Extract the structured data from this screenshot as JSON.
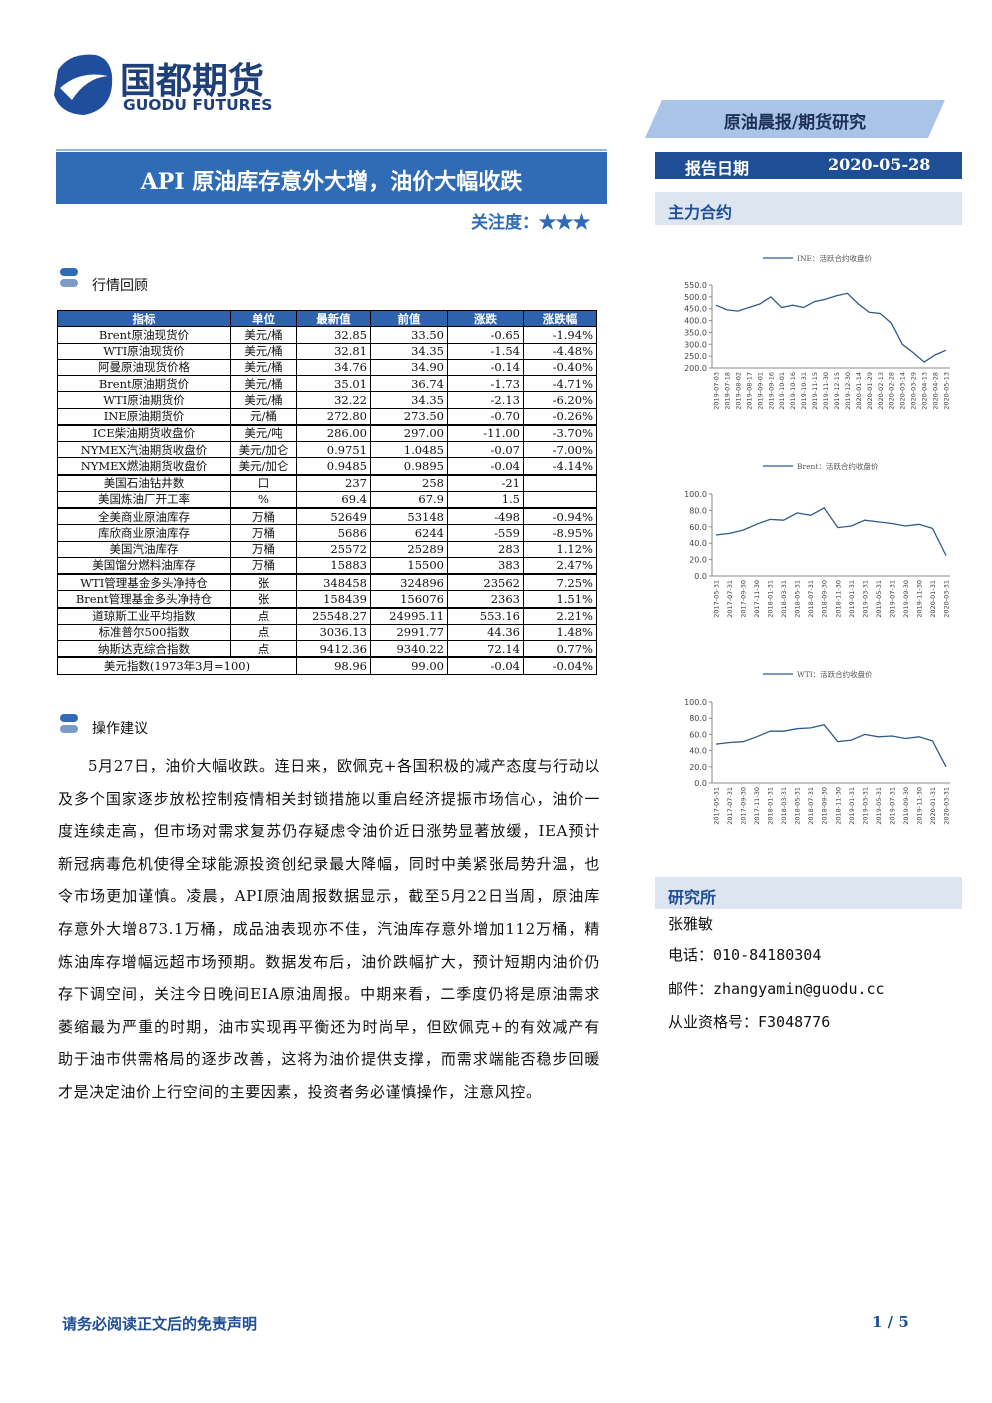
{
  "header": {
    "logo_cn": "国都期货",
    "logo_en": "GUODU FUTURES",
    "banner": "原油晨报/期货研究",
    "report_date_label": "报告日期",
    "report_date": "2020-05-28",
    "title": "API 原油库存意外大增，油价大幅收跌",
    "attention": "关注度：★★★"
  },
  "sections": {
    "review": "行情回顾",
    "advice": "操作建议"
  },
  "table": {
    "columns": [
      "指标",
      "单位",
      "最新值",
      "前值",
      "涨跌",
      "涨跌幅"
    ],
    "rows": [
      [
        "Brent原油现货价",
        "美元/桶",
        "32.85",
        "33.50",
        "-0.65",
        "-1.94%"
      ],
      [
        "WTI原油现货价",
        "美元/桶",
        "32.81",
        "34.35",
        "-1.54",
        "-4.48%"
      ],
      [
        "阿曼原油现货价格",
        "美元/桶",
        "34.76",
        "34.90",
        "-0.14",
        "-0.40%"
      ],
      [
        "Brent原油期货价",
        "美元/桶",
        "35.01",
        "36.74",
        "-1.73",
        "-4.71%"
      ],
      [
        "WTI原油期货价",
        "美元/桶",
        "32.22",
        "34.35",
        "-2.13",
        "-6.20%"
      ],
      [
        "INE原油期货价",
        "元/桶",
        "272.80",
        "273.50",
        "-0.70",
        "-0.26%"
      ],
      [
        "ICE柴油期货收盘价",
        "美元/吨",
        "286.00",
        "297.00",
        "-11.00",
        "-3.70%"
      ],
      [
        "NYMEX汽油期货收盘价",
        "美元/加仑",
        "0.9751",
        "1.0485",
        "-0.07",
        "-7.00%"
      ],
      [
        "NYMEX燃油期货收盘价",
        "美元/加仑",
        "0.9485",
        "0.9895",
        "-0.04",
        "-4.14%"
      ],
      [
        "美国石油钻井数",
        "口",
        "237",
        "258",
        "-21",
        null
      ],
      [
        "美国炼油厂开工率",
        "%",
        "69.4",
        "67.9",
        "1.5",
        null
      ],
      [
        "全美商业原油库存",
        "万桶",
        "52649",
        "53148",
        "-498",
        "-0.94%"
      ],
      [
        "库欣商业原油库存",
        "万桶",
        "5686",
        "6244",
        "-559",
        "-8.95%"
      ],
      [
        "美国汽油库存",
        "万桶",
        "25572",
        "25289",
        "283",
        "1.12%"
      ],
      [
        "美国馏分燃料油库存",
        "万桶",
        "15883",
        "15500",
        "383",
        "2.47%"
      ],
      [
        "WTI管理基金多头净持仓",
        "张",
        "348458",
        "324896",
        "23562",
        "7.25%"
      ],
      [
        "Brent管理基金多头净持仓",
        "张",
        "158439",
        "156076",
        "2363",
        "1.51%"
      ],
      [
        "道琼斯工业平均指数",
        "点",
        "25548.27",
        "24995.11",
        "553.16",
        "2.21%"
      ],
      [
        "标准普尔500指数",
        "点",
        "3036.13",
        "2991.77",
        "44.36",
        "1.48%"
      ],
      [
        "纳斯达克综合指数",
        "点",
        "9412.36",
        "9340.22",
        "72.14",
        "0.77%"
      ],
      [
        "美元指数(1973年3月=100)",
        null,
        "98.96",
        "99.00",
        "-0.04",
        "-0.04%"
      ]
    ]
  },
  "advice": "5月27日，油价大幅收跌。连日来，欧佩克+各国积极的减产态度与行动以及多个国家逐步放松控制疫情相关封锁措施以重启经济提振市场信心，油价一度连续走高，但市场对需求复苏仍存疑虑令油价近日涨势显著放缓，IEA预计新冠病毒危机使得全球能源投资创纪录最大降幅，同时中美紧张局势升温，也令市场更加谨慎。凌晨，API原油周报数据显示，截至5月22日当周，原油库存意外大增873.1万桶，成品油表现亦不佳，汽油库存意外增加112万桶，精炼油库存增幅远超市场预期。数据发布后，油价跌幅扩大，预计短期内油价仍存下调空间，关注今日晚间EIA原油周报。中期来看，二季度仍将是原油需求萎缩最为严重的时期，油市实现再平衡还为时尚早，但欧佩克+的有效减产有助于油市供需格局的逐步改善，这将为油价提供支撑，而需求端能否稳步回暖才是决定油价上行空间的主要因素，投资者务必谨慎操作，注意风控。",
  "sidebar": {
    "contracts_title": "主力合约",
    "research_title": "研究所",
    "analyst": "张雅敏",
    "phone": "电话：010-84180304",
    "email": "邮件：zhangyamin@guodu.cc",
    "license": "从业资格号：F3048776"
  },
  "chart_data": [
    {
      "type": "line",
      "categories": [
        "2019-07-03",
        "2019-07-18",
        "2019-08-02",
        "2019-08-17",
        "2019-09-01",
        "2019-09-16",
        "2019-10-01",
        "2019-10-16",
        "2019-10-31",
        "2019-11-15",
        "2019-11-30",
        "2019-12-15",
        "2019-12-30",
        "2020-01-14",
        "2020-01-29",
        "2020-02-13",
        "2020-02-28",
        "2020-03-14",
        "2020-03-29",
        "2020-04-13",
        "2020-04-28",
        "2020-05-13"
      ],
      "series": [
        {
          "name": "INE：活跃合约收盘价",
          "color": "#2f5a8c",
          "values": [
            465,
            445,
            440,
            455,
            470,
            500,
            455,
            465,
            455,
            480,
            490,
            505,
            515,
            470,
            435,
            430,
            390,
            300,
            265,
            225,
            255,
            275
          ]
        }
      ],
      "ylim": [
        200,
        550
      ],
      "yticks": [
        {
          "value": 200,
          "label": "200.0"
        },
        {
          "value": 250,
          "label": "250.0"
        },
        {
          "value": 300,
          "label": "300.0"
        },
        {
          "value": 350,
          "label": "350.0"
        },
        {
          "value": 400,
          "label": "400.0"
        },
        {
          "value": 450,
          "label": "450.0"
        },
        {
          "value": 500,
          "label": "500.0"
        },
        {
          "value": 550,
          "label": "550.0"
        }
      ]
    },
    {
      "type": "line",
      "categories": [
        "2017-05-31",
        "2017-07-31",
        "2017-09-30",
        "2017-11-30",
        "2018-01-31",
        "2018-03-31",
        "2018-05-31",
        "2018-07-31",
        "2018-09-30",
        "2018-11-30",
        "2019-01-31",
        "2019-03-31",
        "2019-05-31",
        "2019-07-31",
        "2019-09-30",
        "2019-11-30",
        "2020-01-31",
        "2020-03-31"
      ],
      "series": [
        {
          "name": "Brent：活跃合约收盘价",
          "color": "#2f5a8c",
          "values": [
            50,
            52,
            56,
            63,
            69,
            68,
            77,
            74,
            83,
            59,
            61,
            68,
            66,
            64,
            61,
            63,
            58,
            25
          ]
        }
      ],
      "ylim": [
        0,
        100
      ],
      "yticks": [
        {
          "value": 0,
          "label": "0.0"
        },
        {
          "value": 20,
          "label": "20.0"
        },
        {
          "value": 40,
          "label": "40.0"
        },
        {
          "value": 60,
          "label": "60.0"
        },
        {
          "value": 80,
          "label": "80.0"
        },
        {
          "value": 100,
          "label": "100.0"
        }
      ]
    },
    {
      "type": "line",
      "categories": [
        "2017-05-31",
        "2017-07-31",
        "2017-09-30",
        "2017-11-30",
        "2018-01-31",
        "2018-03-31",
        "2018-05-31",
        "2018-07-31",
        "2018-09-30",
        "2018-11-30",
        "2019-01-31",
        "2019-03-31",
        "2019-05-31",
        "2019-07-31",
        "2019-09-30",
        "2019-11-30",
        "2020-01-31",
        "2020-03-31"
      ],
      "series": [
        {
          "name": "WTI：活跃合约收盘价",
          "color": "#2f5a8c",
          "values": [
            48,
            50,
            51,
            57,
            64,
            64,
            67,
            68,
            72,
            51,
            53,
            60,
            57,
            58,
            55,
            57,
            52,
            20
          ]
        }
      ],
      "ylim": [
        0,
        100
      ],
      "yticks": [
        {
          "value": 0,
          "label": "0.0"
        },
        {
          "value": 20,
          "label": "20.0"
        },
        {
          "value": 40,
          "label": "40.0"
        },
        {
          "value": 60,
          "label": "60.0"
        },
        {
          "value": 80,
          "label": "80.0"
        },
        {
          "value": 100,
          "label": "100.0"
        }
      ]
    }
  ],
  "footer": {
    "disclaimer": "请务必阅读正文后的免责声明",
    "page": "1 / 5"
  }
}
